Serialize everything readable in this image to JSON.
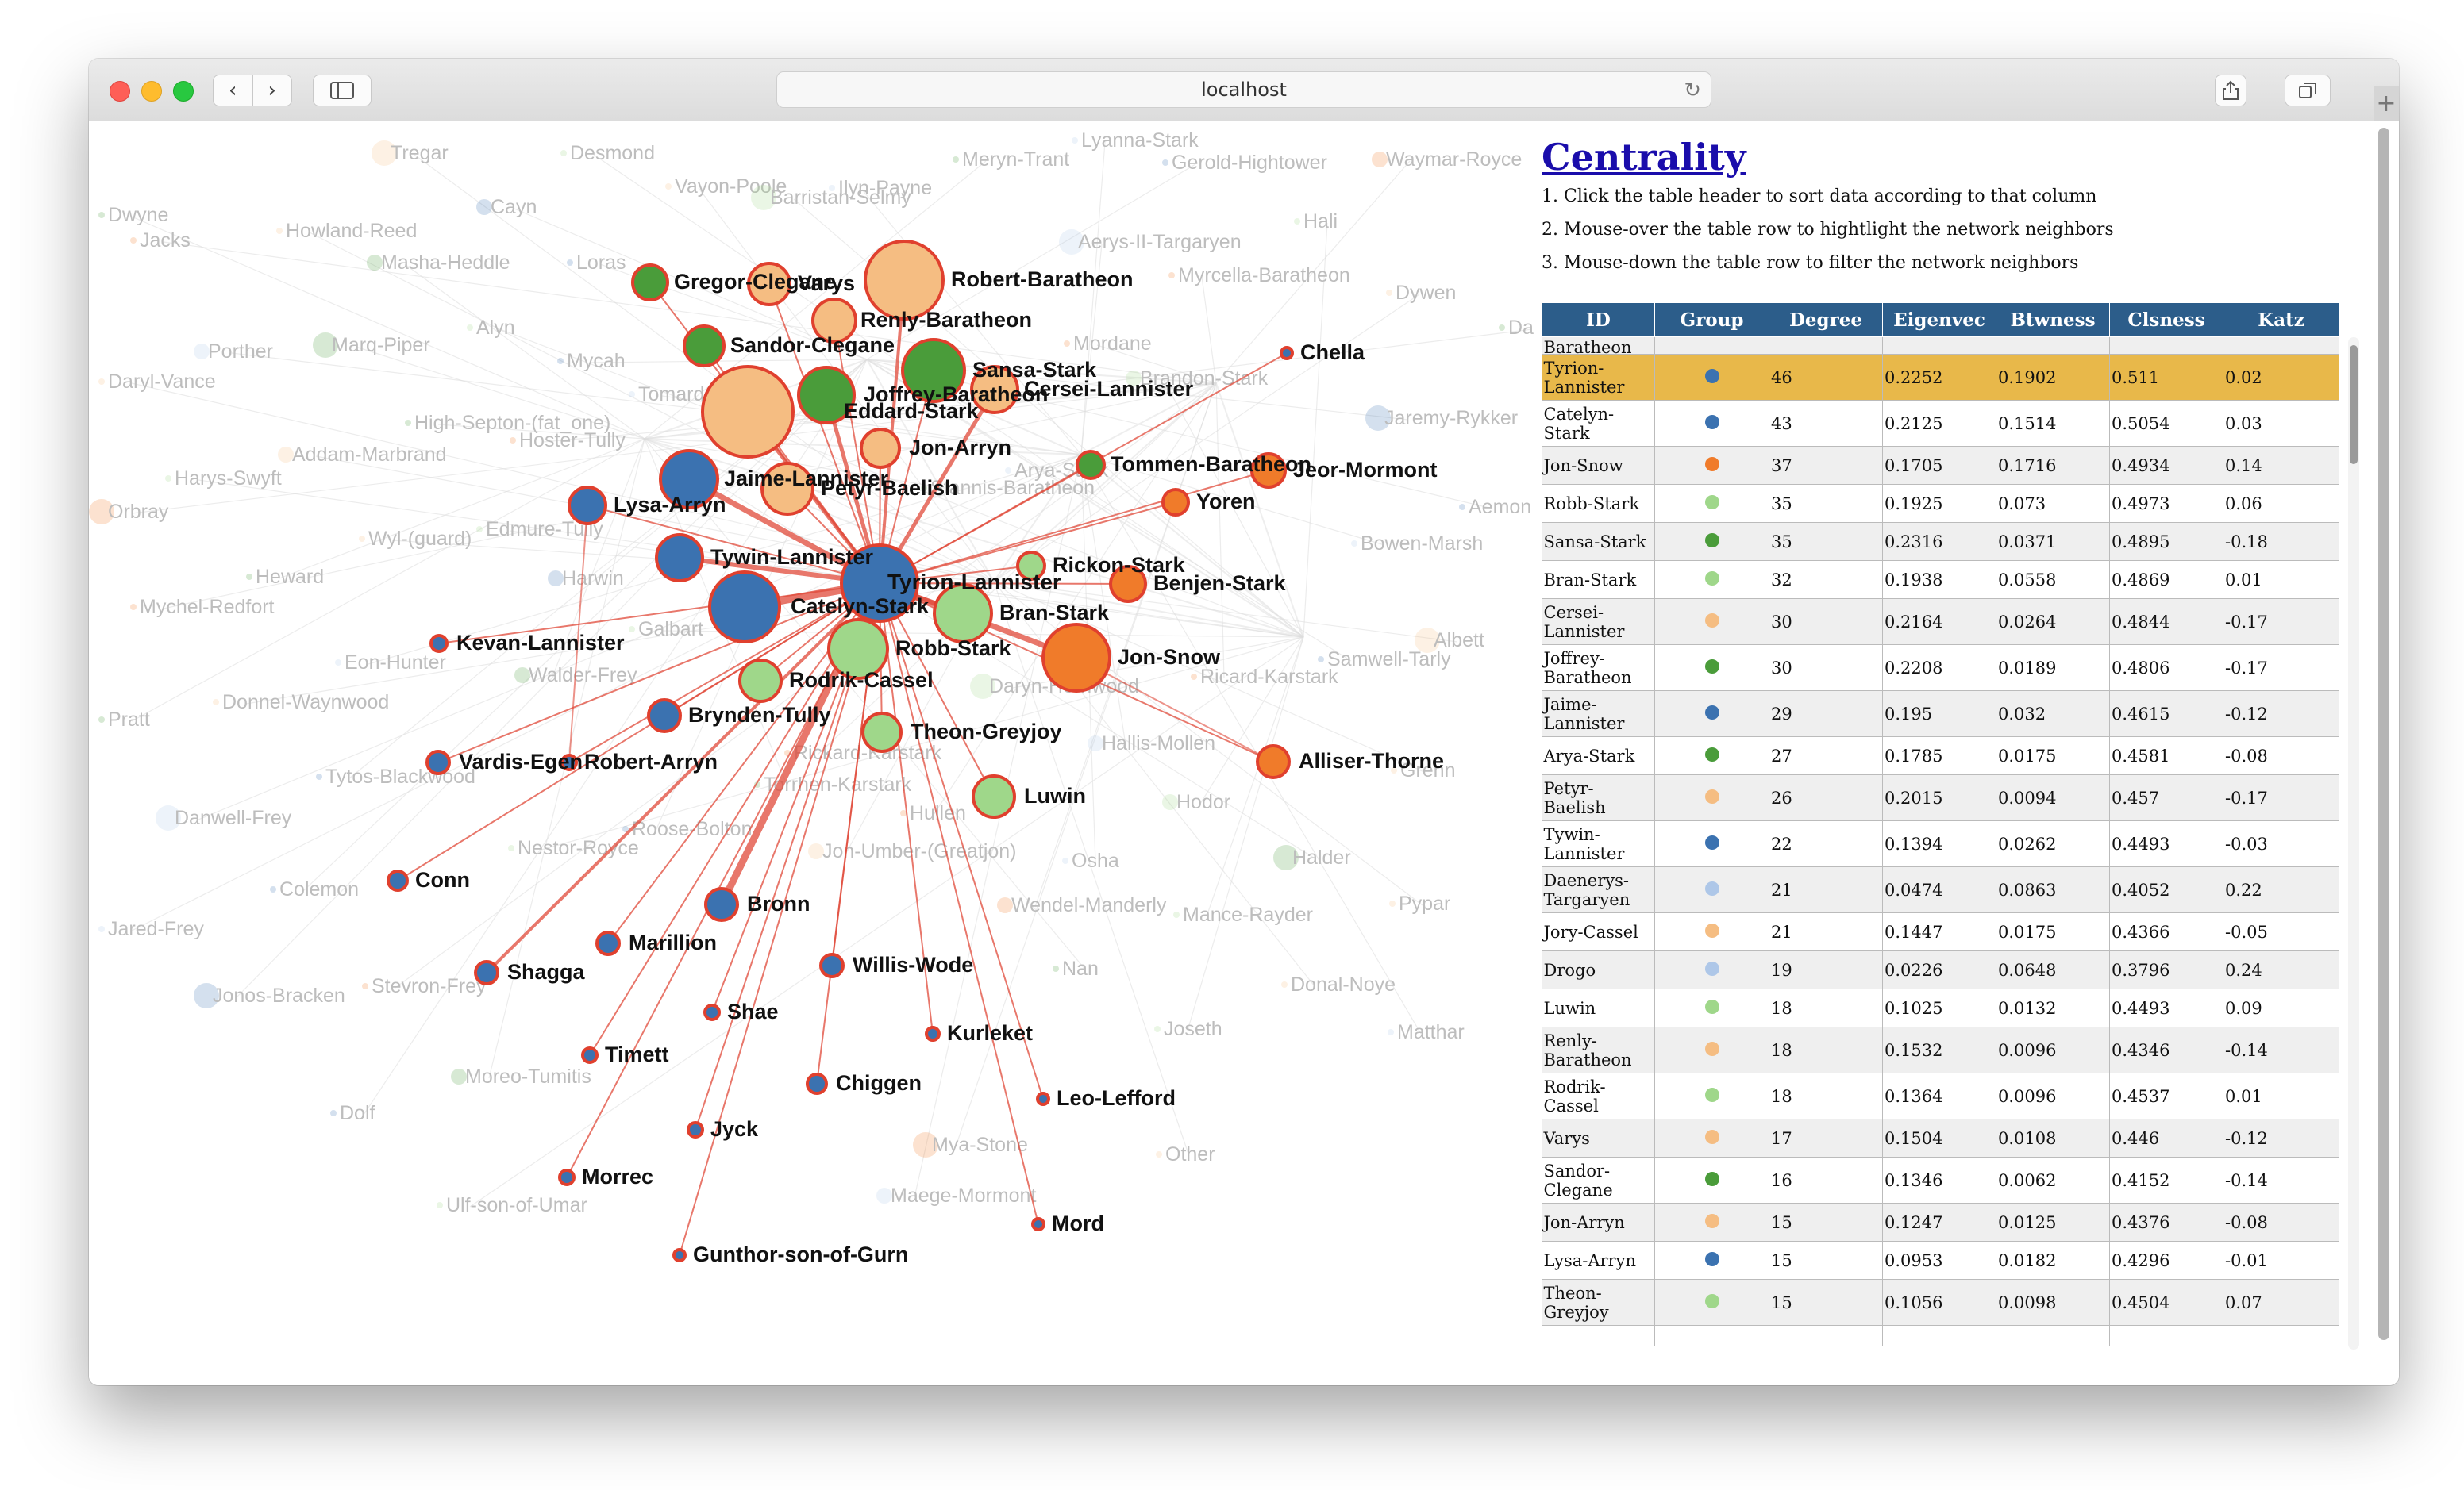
{
  "browser": {
    "url": "localhost"
  },
  "panel": {
    "title": "Centrality",
    "instructions": [
      "1. Click the table header to sort data according to that column",
      "2. Mouse-over the table row to hightlight the network neighbors",
      "3. Mouse-down the table row to filter the network neighbors"
    ]
  },
  "table": {
    "columns": [
      "ID",
      "Group",
      "Degree",
      "Eigenvec",
      "Btwness",
      "Clsness",
      "Katz"
    ],
    "partial_top_row": "Baratheon",
    "rows": [
      {
        "id": "Tyrion-Lannister",
        "group_color": "#3b72b0",
        "degree": "46",
        "eigenvec": "0.2252",
        "btwness": "0.1902",
        "clsness": "0.511",
        "katz": "0.02",
        "highlight": true
      },
      {
        "id": "Catelyn-Stark",
        "group_color": "#3b72b0",
        "degree": "43",
        "eigenvec": "0.2125",
        "btwness": "0.1514",
        "clsness": "0.5054",
        "katz": "0.03"
      },
      {
        "id": "Jon-Snow",
        "group_color": "#f07b2a",
        "degree": "37",
        "eigenvec": "0.1705",
        "btwness": "0.1716",
        "clsness": "0.4934",
        "katz": "0.14"
      },
      {
        "id": "Robb-Stark",
        "group_color": "#9fd78a",
        "degree": "35",
        "eigenvec": "0.1925",
        "btwness": "0.073",
        "clsness": "0.4973",
        "katz": "0.06"
      },
      {
        "id": "Sansa-Stark",
        "group_color": "#4a9c3a",
        "degree": "35",
        "eigenvec": "0.2316",
        "btwness": "0.0371",
        "clsness": "0.4895",
        "katz": "-0.18"
      },
      {
        "id": "Bran-Stark",
        "group_color": "#9fd78a",
        "degree": "32",
        "eigenvec": "0.1938",
        "btwness": "0.0558",
        "clsness": "0.4869",
        "katz": "0.01"
      },
      {
        "id": "Cersei-Lannister",
        "group_color": "#f5bd82",
        "degree": "30",
        "eigenvec": "0.2164",
        "btwness": "0.0264",
        "clsness": "0.4844",
        "katz": "-0.17"
      },
      {
        "id": "Joffrey-Baratheon",
        "group_color": "#4a9c3a",
        "degree": "30",
        "eigenvec": "0.2208",
        "btwness": "0.0189",
        "clsness": "0.4806",
        "katz": "-0.17"
      },
      {
        "id": "Jaime-Lannister",
        "group_color": "#3b72b0",
        "degree": "29",
        "eigenvec": "0.195",
        "btwness": "0.032",
        "clsness": "0.4615",
        "katz": "-0.12"
      },
      {
        "id": "Arya-Stark",
        "group_color": "#4a9c3a",
        "degree": "27",
        "eigenvec": "0.1785",
        "btwness": "0.0175",
        "clsness": "0.4581",
        "katz": "-0.08"
      },
      {
        "id": "Petyr-Baelish",
        "group_color": "#f5bd82",
        "degree": "26",
        "eigenvec": "0.2015",
        "btwness": "0.0094",
        "clsness": "0.457",
        "katz": "-0.17"
      },
      {
        "id": "Tywin-Lannister",
        "group_color": "#3b72b0",
        "degree": "22",
        "eigenvec": "0.1394",
        "btwness": "0.0262",
        "clsness": "0.4493",
        "katz": "-0.03"
      },
      {
        "id": "Daenerys-Targaryen",
        "group_color": "#aec7e8",
        "degree": "21",
        "eigenvec": "0.0474",
        "btwness": "0.0863",
        "clsness": "0.4052",
        "katz": "0.22"
      },
      {
        "id": "Jory-Cassel",
        "group_color": "#f5bd82",
        "degree": "21",
        "eigenvec": "0.1447",
        "btwness": "0.0175",
        "clsness": "0.4366",
        "katz": "-0.05"
      },
      {
        "id": "Drogo",
        "group_color": "#aec7e8",
        "degree": "19",
        "eigenvec": "0.0226",
        "btwness": "0.0648",
        "clsness": "0.3796",
        "katz": "0.24"
      },
      {
        "id": "Luwin",
        "group_color": "#9fd78a",
        "degree": "18",
        "eigenvec": "0.1025",
        "btwness": "0.0132",
        "clsness": "0.4493",
        "katz": "0.09"
      },
      {
        "id": "Renly-Baratheon",
        "group_color": "#f5bd82",
        "degree": "18",
        "eigenvec": "0.1532",
        "btwness": "0.0096",
        "clsness": "0.4346",
        "katz": "-0.14"
      },
      {
        "id": "Rodrik-Cassel",
        "group_color": "#9fd78a",
        "degree": "18",
        "eigenvec": "0.1364",
        "btwness": "0.0096",
        "clsness": "0.4537",
        "katz": "0.01"
      },
      {
        "id": "Varys",
        "group_color": "#f5bd82",
        "degree": "17",
        "eigenvec": "0.1504",
        "btwness": "0.0108",
        "clsness": "0.446",
        "katz": "-0.12"
      },
      {
        "id": "Sandor-Clegane",
        "group_color": "#4a9c3a",
        "degree": "16",
        "eigenvec": "0.1346",
        "btwness": "0.0062",
        "clsness": "0.4152",
        "katz": "-0.14"
      },
      {
        "id": "Jon-Arryn",
        "group_color": "#f5bd82",
        "degree": "15",
        "eigenvec": "0.1247",
        "btwness": "0.0125",
        "clsness": "0.4376",
        "katz": "-0.08"
      },
      {
        "id": "Lysa-Arryn",
        "group_color": "#3b72b0",
        "degree": "15",
        "eigenvec": "0.0953",
        "btwness": "0.0182",
        "clsness": "0.4296",
        "katz": "-0.01"
      },
      {
        "id": "Theon-Greyjoy",
        "group_color": "#9fd78a",
        "degree": "15",
        "eigenvec": "0.1056",
        "btwness": "0.0098",
        "clsness": "0.4504",
        "katz": "0.07"
      }
    ]
  },
  "network": {
    "center": "Tyrion-Lannister",
    "colors": {
      "edge_highlight": "#e04a3a",
      "edge_faded": "#dddddd",
      "node_stroke_highlight": "#e0402e",
      "label_faded": "#bdbdbd",
      "label_active": "#111111"
    },
    "active_nodes": [
      {
        "id": "Tyrion-Lannister",
        "color": "#3b72b0"
      },
      {
        "id": "Robert-Baratheon",
        "color": "#f5bd82"
      },
      {
        "id": "Eddard-Stark",
        "color": "#f5bd82"
      },
      {
        "id": "Catelyn-Stark",
        "color": "#3b72b0"
      },
      {
        "id": "Jon-Snow",
        "color": "#f07b2a"
      },
      {
        "id": "Robb-Stark",
        "color": "#9fd78a"
      },
      {
        "id": "Sansa-Stark",
        "color": "#4a9c3a"
      },
      {
        "id": "Bran-Stark",
        "color": "#9fd78a"
      },
      {
        "id": "Jaime-Lannister",
        "color": "#3b72b0"
      },
      {
        "id": "Joffrey-Baratheon",
        "color": "#4a9c3a"
      },
      {
        "id": "Cersei-Lannister",
        "color": "#f5bd82"
      },
      {
        "id": "Tywin-Lannister",
        "color": "#3b72b0"
      },
      {
        "id": "Petyr-Baelish",
        "color": "#f5bd82"
      },
      {
        "id": "Lysa-Arryn",
        "color": "#3b72b0"
      },
      {
        "id": "Varys",
        "color": "#f5bd82"
      },
      {
        "id": "Gregor-Clegane",
        "color": "#4a9c3a"
      },
      {
        "id": "Renly-Baratheon",
        "color": "#f5bd82"
      },
      {
        "id": "Sandor-Clegane",
        "color": "#4a9c3a"
      },
      {
        "id": "Jon-Arryn",
        "color": "#f5bd82"
      },
      {
        "id": "Tommen-Baratheon",
        "color": "#4a9c3a"
      },
      {
        "id": "Jeor-Mormont",
        "color": "#f07b2a"
      },
      {
        "id": "Yoren",
        "color": "#f07b2a"
      },
      {
        "id": "Rickon-Stark",
        "color": "#9fd78a"
      },
      {
        "id": "Benjen-Stark",
        "color": "#f07b2a"
      },
      {
        "id": "Rodrik-Cassel",
        "color": "#9fd78a"
      },
      {
        "id": "Theon-Greyjoy",
        "color": "#9fd78a"
      },
      {
        "id": "Luwin",
        "color": "#9fd78a"
      },
      {
        "id": "Alliser-Thorne",
        "color": "#f07b2a"
      },
      {
        "id": "Chella",
        "color": "#3b72b0"
      },
      {
        "id": "Kevan-Lannister",
        "color": "#3b72b0"
      },
      {
        "id": "Brynden-Tully",
        "color": "#3b72b0"
      },
      {
        "id": "Vardis-Egen",
        "color": "#3b72b0"
      },
      {
        "id": "Robert-Arryn",
        "color": "#3b72b0"
      },
      {
        "id": "Conn",
        "color": "#3b72b0"
      },
      {
        "id": "Bronn",
        "color": "#3b72b0"
      },
      {
        "id": "Marillion",
        "color": "#3b72b0"
      },
      {
        "id": "Shagga",
        "color": "#3b72b0"
      },
      {
        "id": "Willis-Wode",
        "color": "#3b72b0"
      },
      {
        "id": "Shae",
        "color": "#3b72b0"
      },
      {
        "id": "Kurleket",
        "color": "#3b72b0"
      },
      {
        "id": "Timett",
        "color": "#3b72b0"
      },
      {
        "id": "Chiggen",
        "color": "#3b72b0"
      },
      {
        "id": "Leo-Lefford",
        "color": "#3b72b0"
      },
      {
        "id": "Jyck",
        "color": "#3b72b0"
      },
      {
        "id": "Morrec",
        "color": "#3b72b0"
      },
      {
        "id": "Mord",
        "color": "#3b72b0"
      },
      {
        "id": "Gunthor-son-of-Gurn",
        "color": "#3b72b0"
      }
    ],
    "faded_labels": [
      "Tregar",
      "Desmond",
      "Lyanna-Stark",
      "Meryn-Trant",
      "Gerold-Hightower",
      "Waymar-Royce",
      "Vayon-Poole",
      "Barristan-Selmy",
      "Ilyn-Payne",
      "Dwyne",
      "Cayn",
      "Jacks",
      "Howland-Reed",
      "Hali",
      "Aerys-II-Targaryen",
      "Masha-Heddle",
      "Loras",
      "Myrcella-Baratheon",
      "Dywen",
      "Alyn",
      "Porther",
      "Marq-Piper",
      "Mycah",
      "Mordane",
      "Daryl-Vance",
      "Brandon-Stark",
      "Tomard",
      "High-Septon-(fat_one)",
      "Jaremy-Rykker",
      "Hoster-Tully",
      "Addam-Marbrand",
      "Harys-Swyft",
      "Arya-Stark",
      "Stannis-Baratheon",
      "Aemon",
      "Orbray",
      "Wyl-(guard)",
      "Edmure-Tully",
      "Bowen-Marsh",
      "Heward",
      "Harwin",
      "Mychel-Redfort",
      "Albett",
      "Galbart",
      "Eon-Hunter",
      "Walder-Frey",
      "Samwell-Tarly",
      "Ricard-Karstark",
      "Donnel-Waynwood",
      "Daryn-Hornwood",
      "Hallis-Mollen",
      "Pratt",
      "Tytos-Blackwood",
      "Rickard-Karstark",
      "Grenn",
      "Hodor",
      "Danwell-Frey",
      "Torrhen-Karstark",
      "Roose-Bolton",
      "Hullen",
      "Jon-Umber-(Greatjon)",
      "Nestor-Royce",
      "Osha",
      "Halder",
      "Colemon",
      "Wendel-Manderly",
      "Pypar",
      "Mance-Rayder",
      "Jared-Frey",
      "Nan",
      "Jonos-Bracken",
      "Stevron-Frey",
      "Donal-Noye",
      "Joseth",
      "Matthar",
      "Moreo-Tumitis",
      "Dolf",
      "Mya-Stone",
      "Other",
      "Ulf-son-of-Umar",
      "Maege-Mormont",
      "Daenerys-Targaryen"
    ]
  }
}
